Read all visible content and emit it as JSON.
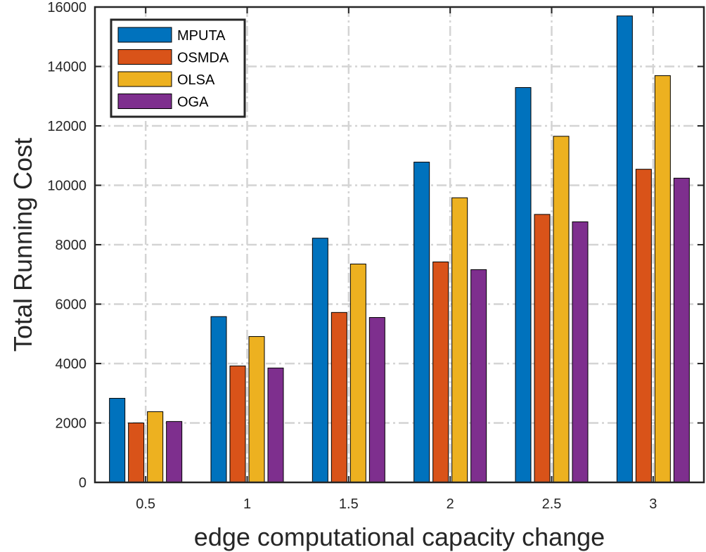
{
  "chart_data": {
    "type": "bar",
    "categories": [
      "0.5",
      "1",
      "1.5",
      "2",
      "2.5",
      "3"
    ],
    "series": [
      {
        "name": "MPUTA",
        "color": "#0072BD",
        "values": [
          2830,
          5580,
          8220,
          10780,
          13290,
          15700
        ]
      },
      {
        "name": "OSMDA",
        "color": "#D95319",
        "values": [
          2000,
          3920,
          5720,
          7420,
          9020,
          10540
        ]
      },
      {
        "name": "OLSA",
        "color": "#EDB120",
        "values": [
          2380,
          4910,
          7350,
          9580,
          11650,
          13690
        ]
      },
      {
        "name": "OGA",
        "color": "#7E2F8E",
        "values": [
          2050,
          3850,
          5550,
          7160,
          8770,
          10240
        ]
      }
    ],
    "title": "",
    "xlabel": "edge computational capacity change",
    "ylabel": "Total Running Cost",
    "ylim": [
      0,
      16000
    ],
    "yticks": [
      "0",
      "2000",
      "4000",
      "6000",
      "8000",
      "10000",
      "12000",
      "14000",
      "16000"
    ],
    "grid": true,
    "legend_position": "top-left"
  }
}
